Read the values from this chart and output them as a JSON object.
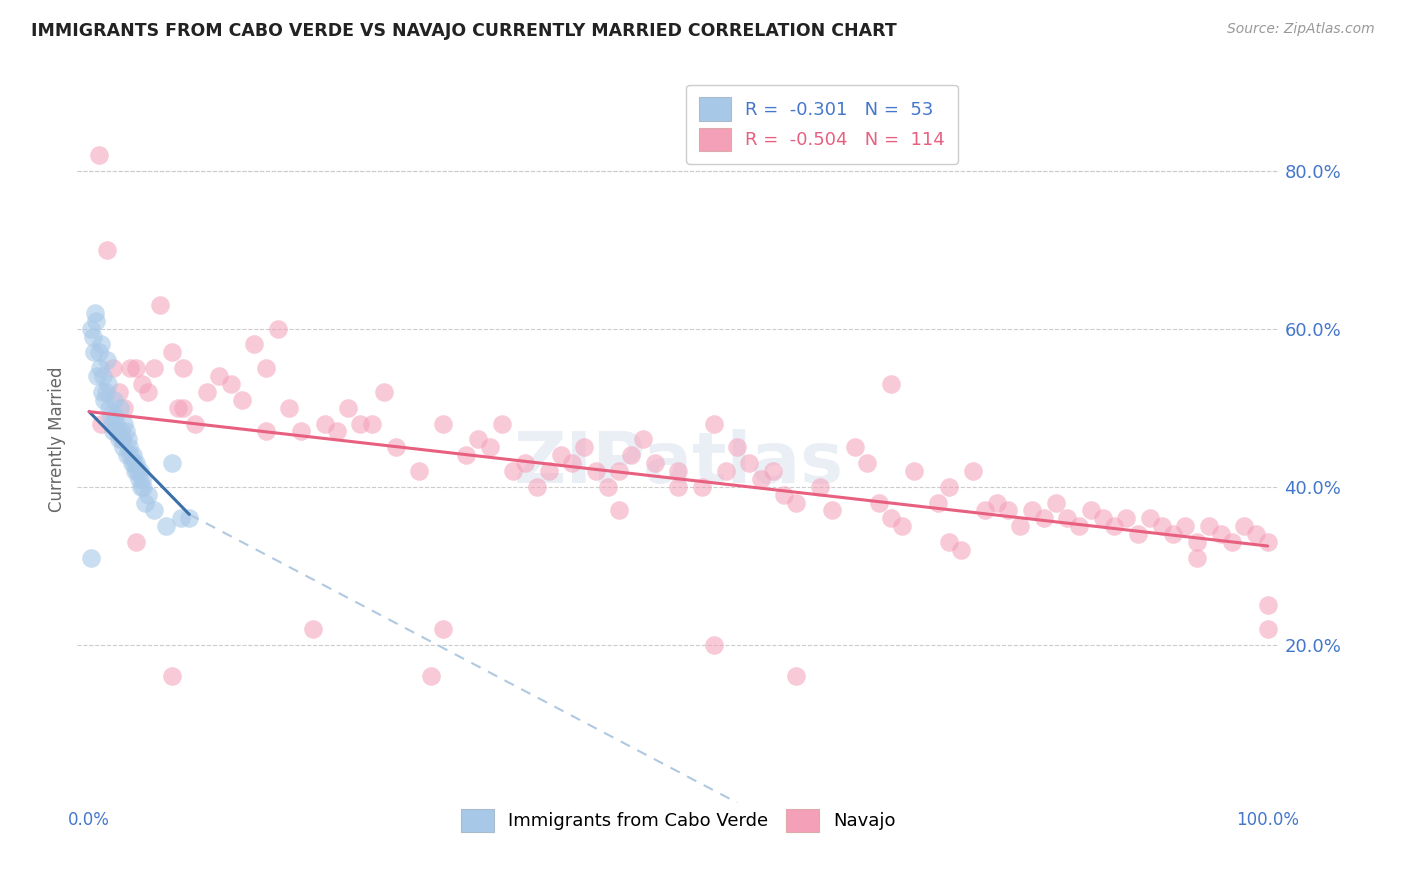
{
  "title": "IMMIGRANTS FROM CABO VERDE VS NAVAJO CURRENTLY MARRIED CORRELATION CHART",
  "source": "Source: ZipAtlas.com",
  "ylabel": "Currently Married",
  "legend_blue_R": "-0.301",
  "legend_blue_N": "53",
  "legend_pink_R": "-0.504",
  "legend_pink_N": "114",
  "blue_color": "#a8c8e8",
  "pink_color": "#f4a0b8",
  "blue_line_color": "#3a6faa",
  "pink_line_color": "#e86080",
  "dashed_line_color": "#b0c8e0",
  "background_color": "#ffffff",
  "watermark": "ZIPatlas",
  "grid_color": "#cccccc",
  "right_tick_color": "#4477cc",
  "title_color": "#222222",
  "source_color": "#999999",
  "blue_scatter_x": [
    0.2,
    0.3,
    0.4,
    0.5,
    0.6,
    0.7,
    0.8,
    0.9,
    1.0,
    1.1,
    1.2,
    1.3,
    1.4,
    1.5,
    1.6,
    1.7,
    1.8,
    1.9,
    2.0,
    2.1,
    2.2,
    2.3,
    2.4,
    2.5,
    2.6,
    2.7,
    2.8,
    2.9,
    3.0,
    3.1,
    3.2,
    3.3,
    3.4,
    3.5,
    3.6,
    3.7,
    3.8,
    3.9,
    4.0,
    4.1,
    4.2,
    4.3,
    4.4,
    4.5,
    4.6,
    4.7,
    5.0,
    5.5,
    6.5,
    7.0,
    7.8,
    8.5,
    0.15
  ],
  "blue_scatter_y": [
    0.6,
    0.59,
    0.57,
    0.62,
    0.61,
    0.54,
    0.57,
    0.55,
    0.58,
    0.52,
    0.54,
    0.51,
    0.52,
    0.56,
    0.53,
    0.5,
    0.49,
    0.48,
    0.47,
    0.51,
    0.49,
    0.48,
    0.47,
    0.46,
    0.5,
    0.47,
    0.46,
    0.45,
    0.48,
    0.47,
    0.44,
    0.46,
    0.45,
    0.44,
    0.43,
    0.44,
    0.43,
    0.42,
    0.43,
    0.42,
    0.41,
    0.42,
    0.4,
    0.41,
    0.4,
    0.38,
    0.39,
    0.37,
    0.35,
    0.43,
    0.36,
    0.36,
    0.31
  ],
  "pink_scatter_x": [
    0.8,
    1.5,
    2.0,
    2.5,
    3.0,
    3.5,
    4.0,
    4.5,
    5.0,
    5.5,
    6.0,
    7.0,
    7.5,
    8.0,
    9.0,
    10.0,
    11.0,
    12.0,
    13.0,
    14.0,
    15.0,
    16.0,
    17.0,
    18.0,
    20.0,
    22.0,
    24.0,
    25.0,
    26.0,
    28.0,
    30.0,
    32.0,
    33.0,
    34.0,
    35.0,
    36.0,
    37.0,
    38.0,
    39.0,
    40.0,
    41.0,
    42.0,
    43.0,
    44.0,
    45.0,
    46.0,
    47.0,
    48.0,
    50.0,
    52.0,
    54.0,
    55.0,
    56.0,
    57.0,
    58.0,
    59.0,
    60.0,
    62.0,
    63.0,
    65.0,
    66.0,
    67.0,
    68.0,
    70.0,
    72.0,
    73.0,
    75.0,
    76.0,
    77.0,
    78.0,
    79.0,
    80.0,
    81.0,
    82.0,
    83.0,
    84.0,
    85.0,
    86.0,
    87.0,
    88.0,
    89.0,
    90.0,
    91.0,
    92.0,
    93.0,
    94.0,
    95.0,
    96.0,
    97.0,
    98.0,
    99.0,
    100.0,
    1.0,
    2.8,
    19.0,
    29.0,
    50.0,
    60.0,
    69.0,
    74.0,
    100.0,
    7.0,
    53.0,
    21.0,
    53.0,
    30.0,
    45.0,
    100.0,
    94.0,
    8.0,
    23.0,
    4.0,
    68.0,
    73.0,
    15.0
  ],
  "pink_scatter_y": [
    0.82,
    0.7,
    0.55,
    0.52,
    0.5,
    0.55,
    0.55,
    0.53,
    0.52,
    0.55,
    0.63,
    0.57,
    0.5,
    0.55,
    0.48,
    0.52,
    0.54,
    0.53,
    0.51,
    0.58,
    0.55,
    0.6,
    0.5,
    0.47,
    0.48,
    0.5,
    0.48,
    0.52,
    0.45,
    0.42,
    0.48,
    0.44,
    0.46,
    0.45,
    0.48,
    0.42,
    0.43,
    0.4,
    0.42,
    0.44,
    0.43,
    0.45,
    0.42,
    0.4,
    0.42,
    0.44,
    0.46,
    0.43,
    0.42,
    0.4,
    0.42,
    0.45,
    0.43,
    0.41,
    0.42,
    0.39,
    0.38,
    0.4,
    0.37,
    0.45,
    0.43,
    0.38,
    0.36,
    0.42,
    0.38,
    0.4,
    0.42,
    0.37,
    0.38,
    0.37,
    0.35,
    0.37,
    0.36,
    0.38,
    0.36,
    0.35,
    0.37,
    0.36,
    0.35,
    0.36,
    0.34,
    0.36,
    0.35,
    0.34,
    0.35,
    0.33,
    0.35,
    0.34,
    0.33,
    0.35,
    0.34,
    0.33,
    0.48,
    0.46,
    0.22,
    0.16,
    0.4,
    0.16,
    0.35,
    0.32,
    0.25,
    0.16,
    0.2,
    0.47,
    0.48,
    0.22,
    0.37,
    0.22,
    0.31,
    0.5,
    0.48,
    0.33,
    0.53,
    0.33,
    0.47
  ],
  "blue_line_x0": 0.0,
  "blue_line_y0": 0.495,
  "blue_line_x1": 8.5,
  "blue_line_y1": 0.365,
  "dash_line_x0": 8.5,
  "dash_line_y0": 0.365,
  "dash_line_x1": 55.0,
  "dash_line_y1": 0.0,
  "pink_line_x0": 0.0,
  "pink_line_y0": 0.495,
  "pink_line_x1": 100.0,
  "pink_line_y1": 0.325,
  "ylim": [
    0.0,
    0.92
  ],
  "xlim": [
    -1.0,
    101.0
  ],
  "yticks_right": [
    0.2,
    0.4,
    0.6,
    0.8
  ],
  "ytick_labels_right": [
    "20.0%",
    "40.0%",
    "60.0%",
    "80.0%"
  ]
}
